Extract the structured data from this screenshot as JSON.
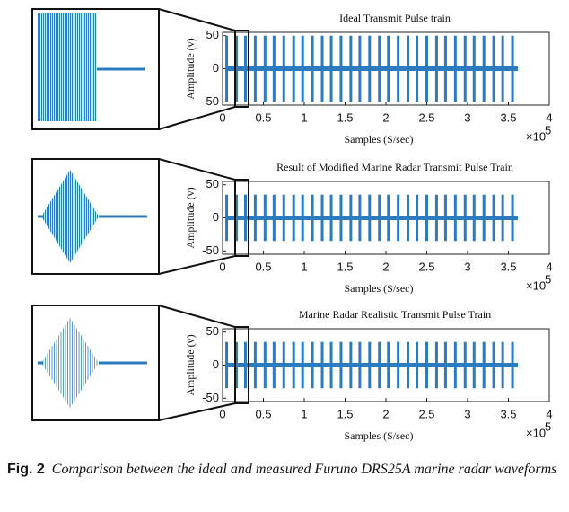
{
  "chart_data": [
    {
      "type": "pulse",
      "title": "Ideal Transmit Pulse train",
      "x_label": "Samples (S/sec)",
      "y_label": "Amplitude (v)",
      "x_scale_base": "×10",
      "x_scale_exponent": "5",
      "color": "#2b7bc0",
      "xlim": [
        0,
        4
      ],
      "xticks": [
        0,
        0.5,
        1,
        1.5,
        2,
        2.5,
        3,
        3.5,
        4
      ],
      "ylim": [
        -55,
        55
      ],
      "yticks": [
        -50,
        0,
        50
      ],
      "x": [
        0.05,
        0.17,
        0.28,
        0.4,
        0.52,
        0.63,
        0.75,
        0.87,
        0.98,
        1.1,
        1.22,
        1.33,
        1.45,
        1.57,
        1.68,
        1.8,
        1.92,
        2.03,
        2.15,
        2.27,
        2.38,
        2.5,
        2.62,
        2.73,
        2.85,
        2.97,
        3.08,
        3.2,
        3.32,
        3.43,
        3.55
      ],
      "values": [
        50,
        50,
        50,
        50,
        50,
        50,
        50,
        50,
        50,
        50,
        50,
        50,
        50,
        50,
        50,
        50,
        50,
        50,
        50,
        50,
        50,
        50,
        50,
        50,
        50,
        50,
        50,
        50,
        50,
        50,
        50
      ]
    },
    {
      "type": "pulse",
      "title": "Result of Modified Marine Radar Transmit Pulse Train",
      "x_label": "Samples (S/sec)",
      "y_label": "Amplitude (v)",
      "x_scale_base": "×10",
      "x_scale_exponent": "5",
      "color": "#2b7bc0",
      "xlim": [
        0,
        4
      ],
      "xticks": [
        0,
        0.5,
        1,
        1.5,
        2,
        2.5,
        3,
        3.5,
        4
      ],
      "ylim": [
        -55,
        55
      ],
      "yticks": [
        -50,
        0,
        50
      ],
      "x": [
        0.05,
        0.17,
        0.28,
        0.4,
        0.52,
        0.63,
        0.75,
        0.87,
        0.98,
        1.1,
        1.22,
        1.33,
        1.45,
        1.57,
        1.68,
        1.8,
        1.92,
        2.03,
        2.15,
        2.27,
        2.38,
        2.5,
        2.62,
        2.73,
        2.85,
        2.97,
        3.08,
        3.2,
        3.32,
        3.43,
        3.55
      ],
      "values": [
        35,
        35,
        35,
        35,
        35,
        35,
        35,
        35,
        35,
        35,
        35,
        35,
        35,
        35,
        35,
        35,
        35,
        35,
        35,
        35,
        35,
        35,
        35,
        35,
        35,
        35,
        35,
        35,
        35,
        35,
        35
      ]
    },
    {
      "type": "pulse",
      "title": "Marine Radar Realistic Transmit Pulse Train",
      "x_label": "Samples (S/sec)",
      "y_label": "Amplitude (v)",
      "x_scale_base": "×10",
      "x_scale_exponent": "5",
      "color": "#2b7bc0",
      "xlim": [
        0,
        4
      ],
      "xticks": [
        0,
        0.5,
        1,
        1.5,
        2,
        2.5,
        3,
        3.5,
        4
      ],
      "ylim": [
        -55,
        55
      ],
      "yticks": [
        -50,
        0,
        50
      ],
      "x": [
        0.05,
        0.17,
        0.28,
        0.4,
        0.52,
        0.63,
        0.75,
        0.87,
        0.98,
        1.1,
        1.22,
        1.33,
        1.45,
        1.57,
        1.68,
        1.8,
        1.92,
        2.03,
        2.15,
        2.27,
        2.38,
        2.5,
        2.62,
        2.73,
        2.85,
        2.97,
        3.08,
        3.2,
        3.32,
        3.43,
        3.55
      ],
      "values": [
        35,
        35,
        35,
        35,
        35,
        35,
        35,
        35,
        35,
        35,
        35,
        35,
        35,
        35,
        35,
        35,
        35,
        35,
        35,
        35,
        35,
        35,
        35,
        35,
        35,
        35,
        35,
        35,
        35,
        35,
        35
      ]
    }
  ],
  "caption": {
    "label": "Fig. 2",
    "text": "Comparison between the ideal and measured Furuno DRS25A marine radar waveforms"
  }
}
